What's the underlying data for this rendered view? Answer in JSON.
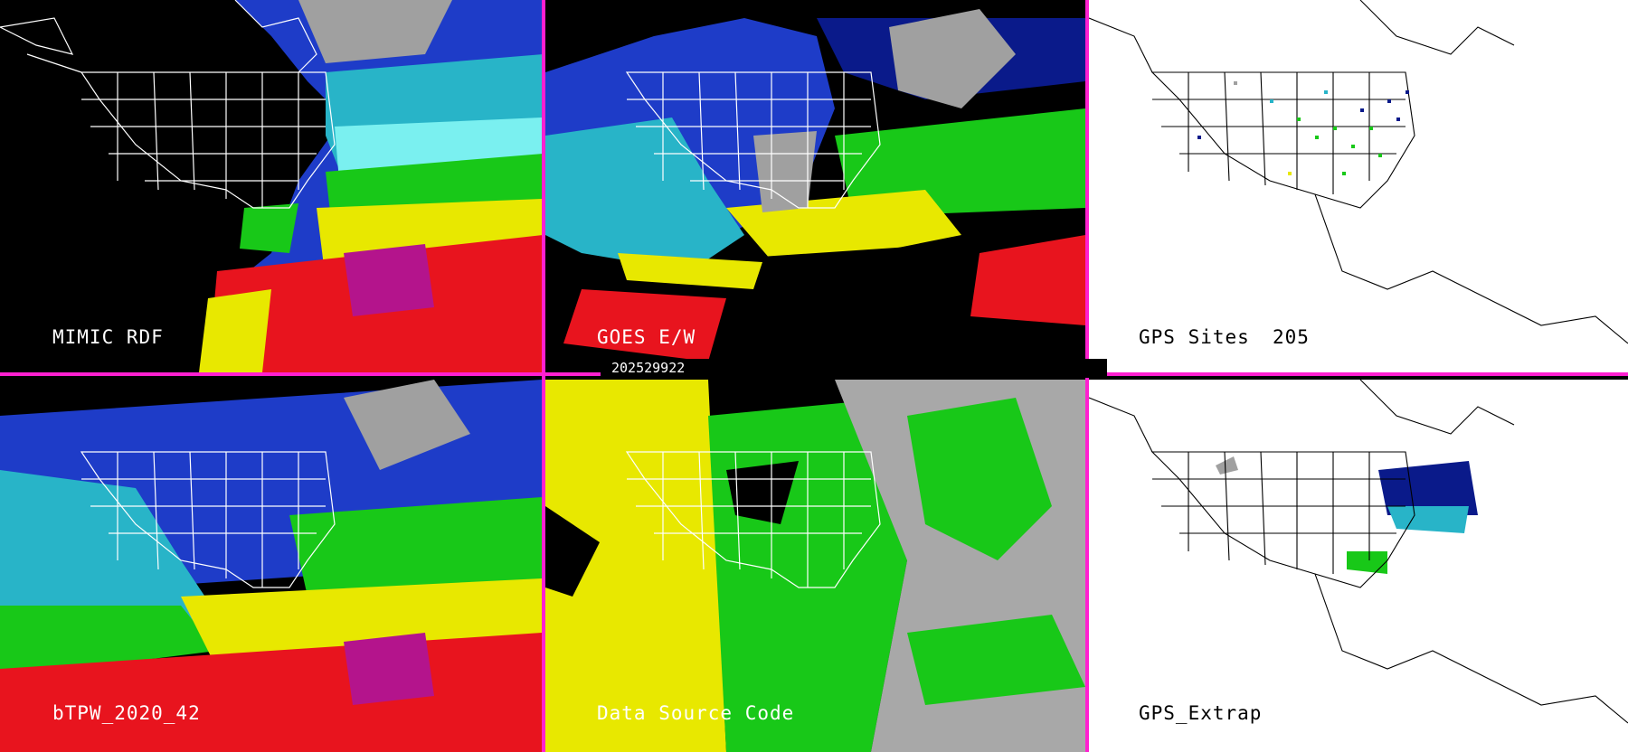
{
  "panels": {
    "mimic_rdf": {
      "label": "MIMIC RDF"
    },
    "goes_ew": {
      "label": "GOES E/W"
    },
    "gps_sites": {
      "label": "GPS Sites",
      "count": "205"
    },
    "btpw": {
      "label": "bTPW_2020_42"
    },
    "data_source_code": {
      "label": "Data Source Code"
    },
    "gps_extrap": {
      "label": "GPS_Extrap"
    }
  },
  "timestamp": "202529922",
  "colors": {
    "divider": "#ff20d0",
    "tpw_scale": [
      "#a0a0a0",
      "#0a1a8a",
      "#1e3cc8",
      "#28b4c8",
      "#7af0f0",
      "#18c818",
      "#a0e818",
      "#e8e800",
      "#f0b400",
      "#e8141e",
      "#b4148c"
    ],
    "source_codes": [
      "#e8e800",
      "#18c818",
      "#a8a8a8",
      "#000000"
    ]
  }
}
